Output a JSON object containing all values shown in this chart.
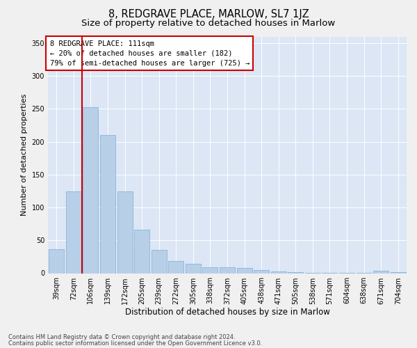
{
  "title": "8, REDGRAVE PLACE, MARLOW, SL7 1JZ",
  "subtitle": "Size of property relative to detached houses in Marlow",
  "xlabel": "Distribution of detached houses by size in Marlow",
  "ylabel": "Number of detached properties",
  "categories": [
    "39sqm",
    "72sqm",
    "106sqm",
    "139sqm",
    "172sqm",
    "205sqm",
    "239sqm",
    "272sqm",
    "305sqm",
    "338sqm",
    "372sqm",
    "405sqm",
    "438sqm",
    "471sqm",
    "505sqm",
    "538sqm",
    "571sqm",
    "604sqm",
    "638sqm",
    "671sqm",
    "704sqm"
  ],
  "values": [
    37,
    124,
    252,
    210,
    124,
    66,
    35,
    19,
    14,
    9,
    9,
    8,
    5,
    3,
    2,
    1,
    1,
    1,
    1,
    4,
    2
  ],
  "bar_color": "#b8cfe8",
  "bar_edge_color": "#7aadd4",
  "redline_x": 1.5,
  "annotation_line1": "8 REDGRAVE PLACE: 111sqm",
  "annotation_line2": "← 20% of detached houses are smaller (182)",
  "annotation_line3": "79% of semi-detached houses are larger (725) →",
  "annotation_box_color": "#ffffff",
  "annotation_box_edge": "#cc0000",
  "redline_color": "#cc0000",
  "ylim": [
    0,
    360
  ],
  "yticks": [
    0,
    50,
    100,
    150,
    200,
    250,
    300,
    350
  ],
  "fig_bg_color": "#f0f0f0",
  "plot_bg_color": "#dce6f5",
  "footer_line1": "Contains HM Land Registry data © Crown copyright and database right 2024.",
  "footer_line2": "Contains public sector information licensed under the Open Government Licence v3.0.",
  "title_fontsize": 10.5,
  "subtitle_fontsize": 9.5,
  "tick_fontsize": 7,
  "ylabel_fontsize": 8,
  "xlabel_fontsize": 8.5,
  "annotation_fontsize": 7.5
}
